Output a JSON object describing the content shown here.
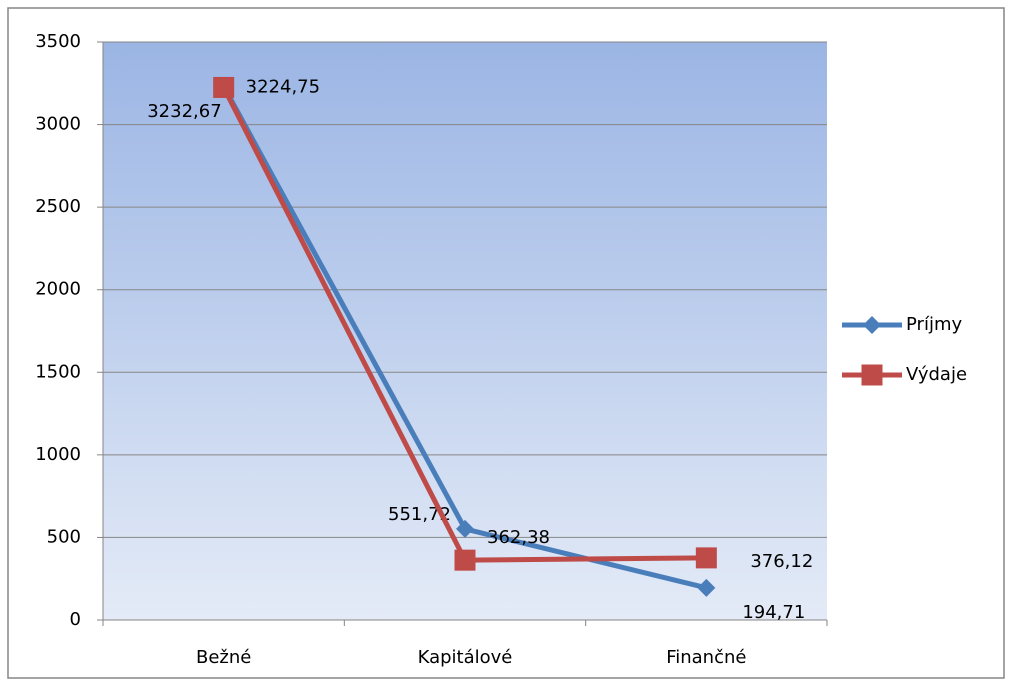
{
  "chart_data": {
    "type": "line",
    "categories": [
      "Bežné",
      "Kapitálové",
      "Finančné"
    ],
    "series": [
      {
        "name": "Príjmy",
        "color": "#4a7ebb",
        "marker": "diamond",
        "values": [
          3232.67,
          551.72,
          194.71
        ],
        "value_labels": [
          "3232,67",
          "551,72",
          "194,71"
        ]
      },
      {
        "name": "Výdaje",
        "color": "#be4b48",
        "marker": "square",
        "values": [
          3224.75,
          362.38,
          376.12
        ],
        "value_labels": [
          "3224,75",
          "362,38",
          "376,12"
        ]
      }
    ],
    "ylim": [
      0,
      3500
    ],
    "yticks": [
      0,
      500,
      1000,
      1500,
      2000,
      2500,
      3000,
      3500
    ],
    "grid": true,
    "legend": "right"
  }
}
